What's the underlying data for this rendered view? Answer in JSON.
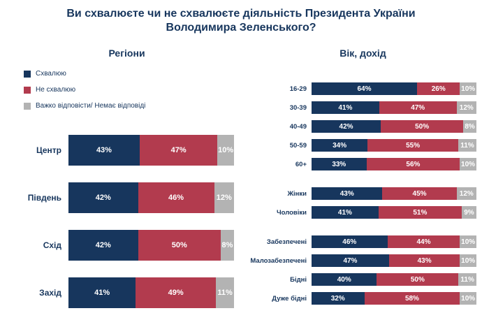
{
  "title": "Ви схвалюєте чи не схвалюєте діяльність Президента України Володимира Зеленського?",
  "colors": {
    "approve": "#17365d",
    "disapprove": "#b23b4e",
    "no_answer": "#b3b3b3",
    "title_text": "#17365d"
  },
  "legend": [
    {
      "key": "approve",
      "label": "Схвалюю"
    },
    {
      "key": "disapprove",
      "label": "Не схвалюю"
    },
    {
      "key": "no_answer",
      "label": "Важко відповісти/ Немає відповіді"
    }
  ],
  "chart_data": [
    {
      "type": "bar",
      "title": "Регіони",
      "orientation": "horizontal",
      "stacked": true,
      "unit": "%",
      "categories": [
        "Центр",
        "Південь",
        "Схід",
        "Захід"
      ],
      "series": [
        {
          "name": "Схвалюю",
          "key": "approve",
          "values": [
            43,
            42,
            42,
            41
          ]
        },
        {
          "name": "Не схвалюю",
          "key": "disapprove",
          "values": [
            47,
            46,
            50,
            49
          ]
        },
        {
          "name": "Важко відповісти/ Немає відповіді",
          "key": "no_answer",
          "values": [
            10,
            12,
            8,
            11
          ]
        }
      ]
    },
    {
      "type": "bar",
      "title": "Вік, дохід",
      "orientation": "horizontal",
      "stacked": true,
      "unit": "%",
      "series_names": [
        "Схвалюю",
        "Не схвалюю",
        "Важко відповісти/ Немає відповіді"
      ],
      "groups": [
        {
          "name": "age",
          "rows": [
            {
              "label": "16-29",
              "values": [
                64,
                26,
                10
              ]
            },
            {
              "label": "30-39",
              "values": [
                41,
                47,
                12
              ]
            },
            {
              "label": "40-49",
              "values": [
                42,
                50,
                8
              ]
            },
            {
              "label": "50-59",
              "values": [
                34,
                55,
                11
              ]
            },
            {
              "label": "60+",
              "values": [
                33,
                56,
                10
              ]
            }
          ]
        },
        {
          "name": "gender",
          "rows": [
            {
              "label": "Жінки",
              "values": [
                43,
                45,
                12
              ]
            },
            {
              "label": "Чоловіки",
              "values": [
                41,
                51,
                9
              ]
            }
          ]
        },
        {
          "name": "income",
          "rows": [
            {
              "label": "Забезпечені",
              "values": [
                46,
                44,
                10
              ]
            },
            {
              "label": "Малозабезпечені",
              "values": [
                47,
                43,
                10
              ]
            },
            {
              "label": "Бідні",
              "values": [
                40,
                50,
                11
              ]
            },
            {
              "label": "Дуже бідні",
              "values": [
                32,
                58,
                10
              ]
            }
          ]
        }
      ]
    }
  ]
}
